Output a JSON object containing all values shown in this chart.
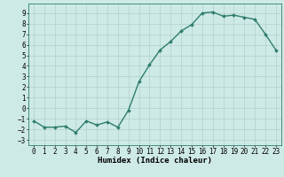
{
  "x": [
    0,
    1,
    2,
    3,
    4,
    5,
    6,
    7,
    8,
    9,
    10,
    11,
    12,
    13,
    14,
    15,
    16,
    17,
    18,
    19,
    20,
    21,
    22,
    23
  ],
  "y": [
    -1.2,
    -1.8,
    -1.8,
    -1.7,
    -2.3,
    -1.2,
    -1.6,
    -1.3,
    -1.8,
    -0.2,
    2.5,
    4.1,
    5.5,
    6.3,
    7.3,
    7.9,
    9.0,
    9.1,
    8.7,
    8.8,
    8.6,
    8.4,
    7.0,
    5.5
  ],
  "line_color": "#2e7d6e",
  "marker": "D",
  "marker_size": 2.0,
  "bg_color": "#ceeae6",
  "grid_color": "#b0d0cc",
  "xlabel": "Humidex (Indice chaleur)",
  "xlim": [
    -0.5,
    23.5
  ],
  "ylim": [
    -3.5,
    9.9
  ],
  "yticks": [
    -3,
    -2,
    -1,
    0,
    1,
    2,
    3,
    4,
    5,
    6,
    7,
    8,
    9
  ],
  "xticks": [
    0,
    1,
    2,
    3,
    4,
    5,
    6,
    7,
    8,
    9,
    10,
    11,
    12,
    13,
    14,
    15,
    16,
    17,
    18,
    19,
    20,
    21,
    22,
    23
  ],
  "tick_fontsize": 5.5,
  "xlabel_fontsize": 6.5,
  "line_width": 1.0
}
